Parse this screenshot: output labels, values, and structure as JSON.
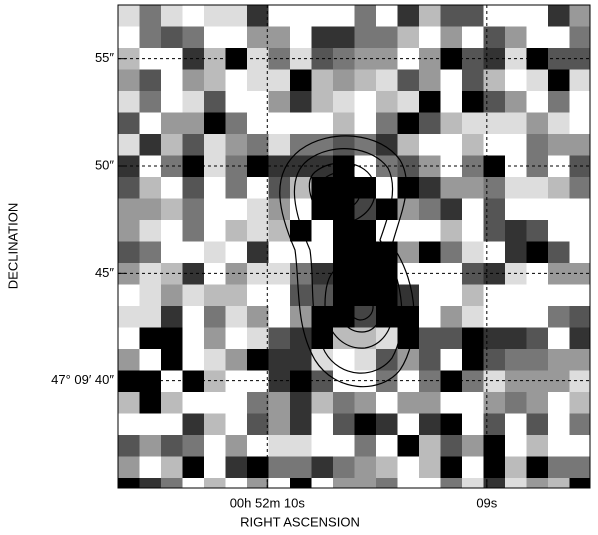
{
  "chart_data": {
    "type": "image",
    "xlabel": "RIGHT ASCENSION",
    "ylabel": "DECLINATION",
    "xlim": [
      10.68,
      8.53
    ],
    "ylim": [
      35,
      57.5
    ],
    "xticks": [
      {
        "value": 10,
        "label": "00h 52m 10s"
      },
      {
        "value": 9,
        "label": "09s"
      }
    ],
    "yticks": [
      {
        "value": 55,
        "label": "55″"
      },
      {
        "value": 50,
        "label": "50″"
      },
      {
        "value": 45,
        "label": "45″"
      },
      {
        "value": 40,
        "label": "47° 09′ 40″"
      }
    ],
    "grid": true
  }
}
